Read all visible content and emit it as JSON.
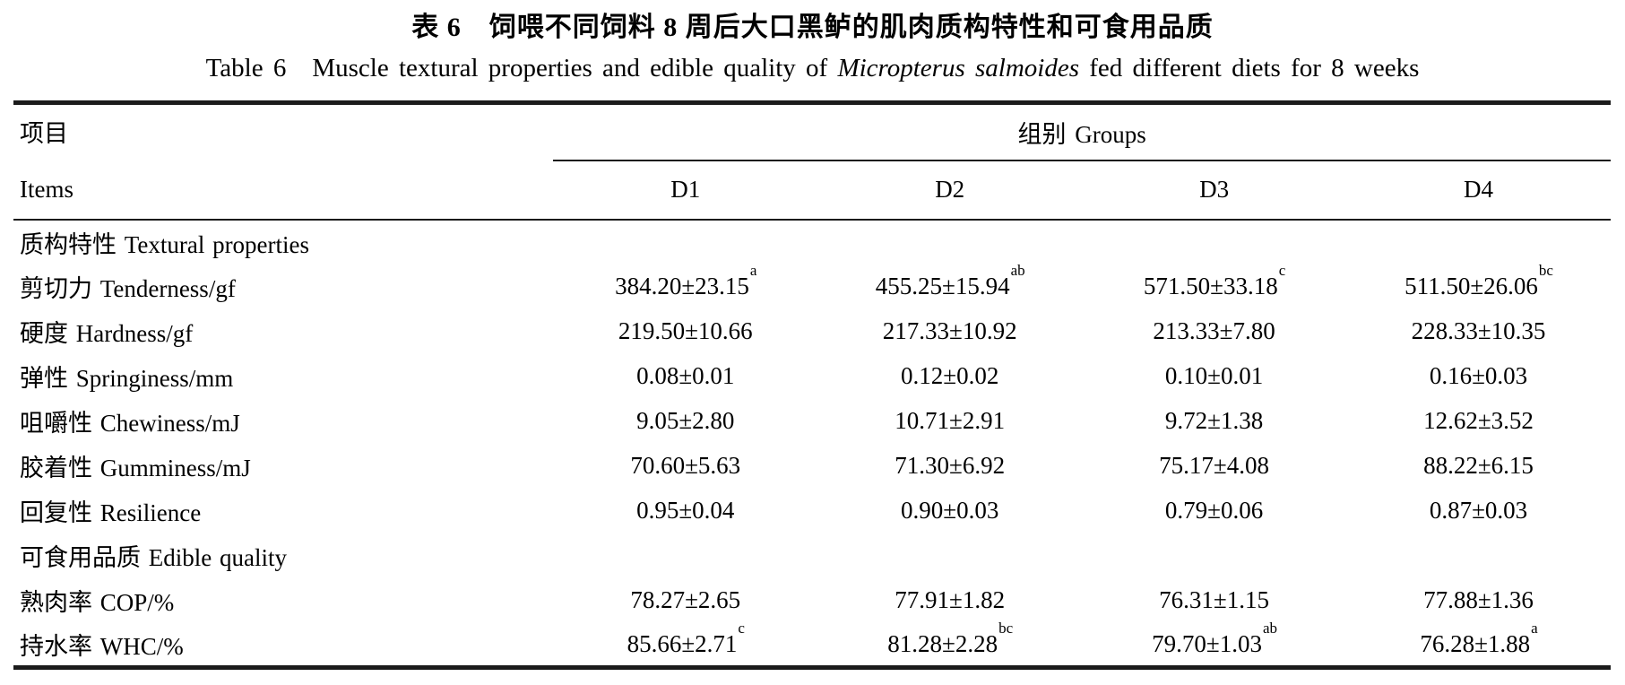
{
  "title": {
    "zh": "表 6　饲喂不同饲料 8 周后大口黑鲈的肌肉质构特性和可食用品质",
    "en_prefix": "Table 6　Muscle textural properties and edible quality of ",
    "en_italic": "Micropterus salmoides",
    "en_suffix": " fed different diets for 8 weeks"
  },
  "table": {
    "items_header_zh": "项目",
    "items_header_en": "Items",
    "groups_header": "组别 Groups",
    "group_columns": [
      "D1",
      "D2",
      "D3",
      "D4"
    ],
    "rows": [
      {
        "type": "section",
        "label": "质构特性 Textural properties"
      },
      {
        "type": "data",
        "label": "剪切力 Tenderness/gf",
        "values": [
          {
            "text": "384.20±23.15",
            "sup": "a"
          },
          {
            "text": "455.25±15.94",
            "sup": "ab"
          },
          {
            "text": "571.50±33.18",
            "sup": "c"
          },
          {
            "text": "511.50±26.06",
            "sup": "bc"
          }
        ]
      },
      {
        "type": "data",
        "label": "硬度 Hardness/gf",
        "values": [
          {
            "text": "219.50±10.66",
            "sup": ""
          },
          {
            "text": "217.33±10.92",
            "sup": ""
          },
          {
            "text": "213.33±7.80",
            "sup": ""
          },
          {
            "text": "228.33±10.35",
            "sup": ""
          }
        ]
      },
      {
        "type": "data",
        "label": "弹性 Springiness/mm",
        "values": [
          {
            "text": "0.08±0.01",
            "sup": ""
          },
          {
            "text": "0.12±0.02",
            "sup": ""
          },
          {
            "text": "0.10±0.01",
            "sup": ""
          },
          {
            "text": "0.16±0.03",
            "sup": ""
          }
        ]
      },
      {
        "type": "data",
        "label": "咀嚼性 Chewiness/mJ",
        "values": [
          {
            "text": "9.05±2.80",
            "sup": ""
          },
          {
            "text": "10.71±2.91",
            "sup": ""
          },
          {
            "text": "9.72±1.38",
            "sup": ""
          },
          {
            "text": "12.62±3.52",
            "sup": ""
          }
        ]
      },
      {
        "type": "data",
        "label": "胶着性 Gumminess/mJ",
        "values": [
          {
            "text": "70.60±5.63",
            "sup": ""
          },
          {
            "text": "71.30±6.92",
            "sup": ""
          },
          {
            "text": "75.17±4.08",
            "sup": ""
          },
          {
            "text": "88.22±6.15",
            "sup": ""
          }
        ]
      },
      {
        "type": "data",
        "label": "回复性 Resilience",
        "values": [
          {
            "text": "0.95±0.04",
            "sup": ""
          },
          {
            "text": "0.90±0.03",
            "sup": ""
          },
          {
            "text": "0.79±0.06",
            "sup": ""
          },
          {
            "text": "0.87±0.03",
            "sup": ""
          }
        ]
      },
      {
        "type": "section",
        "label": "可食用品质 Edible quality"
      },
      {
        "type": "data",
        "label": "熟肉率 COP/%",
        "values": [
          {
            "text": "78.27±2.65",
            "sup": ""
          },
          {
            "text": "77.91±1.82",
            "sup": ""
          },
          {
            "text": "76.31±1.15",
            "sup": ""
          },
          {
            "text": "77.88±1.36",
            "sup": ""
          }
        ]
      },
      {
        "type": "data",
        "label": "持水率 WHC/%",
        "values": [
          {
            "text": "85.66±2.71",
            "sup": "c"
          },
          {
            "text": "81.28±2.28",
            "sup": "bc"
          },
          {
            "text": "79.70±1.03",
            "sup": "ab"
          },
          {
            "text": "76.28±1.88",
            "sup": "a"
          }
        ]
      }
    ]
  }
}
